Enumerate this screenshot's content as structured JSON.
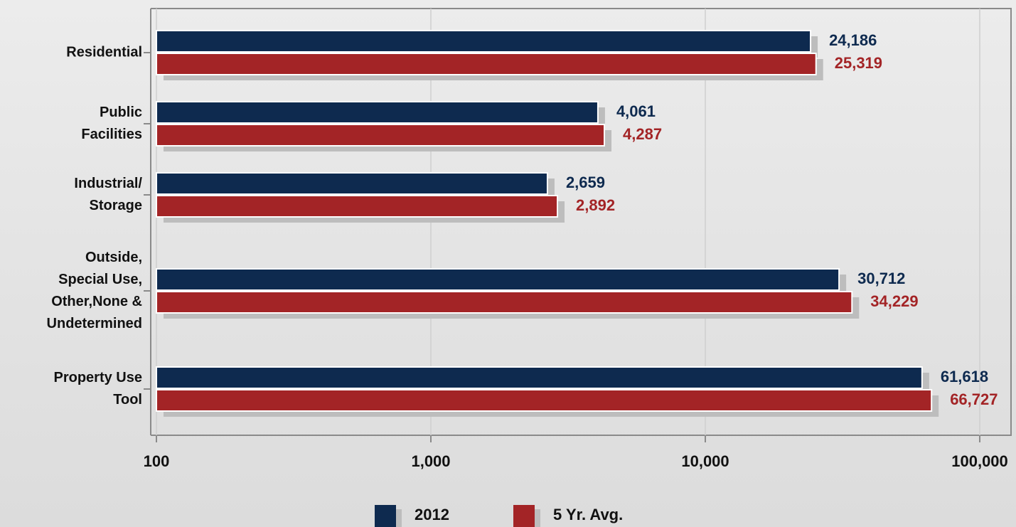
{
  "chart_data": {
    "type": "bar",
    "orientation": "horizontal",
    "categories": [
      [
        "Residential"
      ],
      [
        "Public",
        "Facilities"
      ],
      [
        "Industrial/",
        "Storage"
      ],
      [
        "Outside,",
        "Special Use,",
        "Other,None &",
        "Undetermined"
      ],
      [
        "Property Use",
        "Tool"
      ]
    ],
    "series": [
      {
        "name": "2012",
        "color": "#0e2a4f",
        "values": [
          24186,
          4061,
          2659,
          30712,
          61618
        ],
        "value_labels": [
          "24,186",
          "4,061",
          "2,659",
          "30,712",
          "61,618"
        ]
      },
      {
        "name": "5 Yr. Avg.",
        "color": "#a32426",
        "values": [
          25319,
          4287,
          2892,
          34229,
          66727
        ],
        "value_labels": [
          "25,319",
          "4,287",
          "2,892",
          "34,229",
          "66,727"
        ]
      }
    ],
    "xscale": "log",
    "xlim": [
      100,
      130000
    ],
    "xticks": [
      100,
      {
        "value": 1000,
        "label": "1,000"
      },
      {
        "value": 10000,
        "label": "10,000"
      },
      {
        "value": 100000,
        "label": "100,000"
      }
    ],
    "grid": true,
    "legend": "bottom"
  }
}
